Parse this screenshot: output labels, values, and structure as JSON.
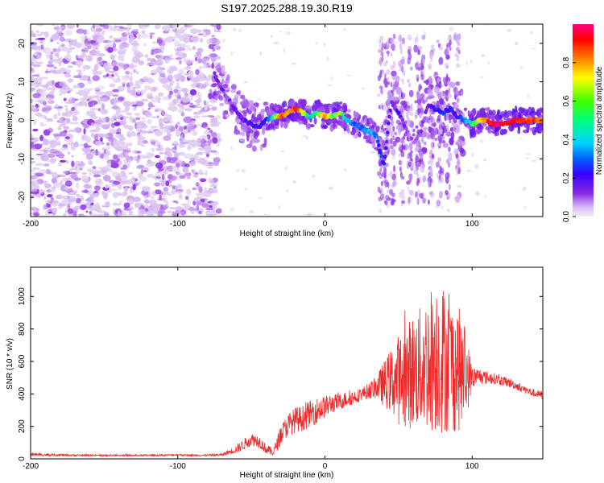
{
  "title": "S197.2025.288.19.30.R19",
  "chart_data": [
    {
      "type": "heatmap",
      "title": "S197.2025.288.19.30.R19",
      "xlabel": "Height of straight line (km)",
      "ylabel": "Frequency (Hz)",
      "xlim": [
        -200,
        148
      ],
      "ylim": [
        -25,
        25
      ],
      "xticks": [
        -200,
        -100,
        0,
        100
      ],
      "yticks": [
        -20,
        -10,
        0,
        10,
        20
      ],
      "colorbar": {
        "label": "Normalized spectral amplitude",
        "range": [
          0.0,
          1.0
        ],
        "ticks": [
          0.0,
          0.2,
          0.4,
          0.6,
          0.8
        ],
        "tick_labels": [
          "0.0",
          "0.2",
          "0.4",
          "0.6",
          "0.8"
        ],
        "colors": [
          "#e8e8e8",
          "#d7b8f5",
          "#8a2be2",
          "#3a00ff",
          "#0060ff",
          "#00d0ff",
          "#00ff60",
          "#ffff00",
          "#ff8000",
          "#ff0000",
          "#ff00a0"
        ]
      },
      "ridge": {
        "x": [
          -75,
          -70,
          -65,
          -60,
          -55,
          -50,
          -45,
          -40,
          -35,
          -30,
          -25,
          -20,
          -15,
          -10,
          -5,
          0,
          5,
          10,
          15,
          20,
          25,
          30,
          35,
          40,
          45,
          50,
          55,
          60,
          65,
          70,
          75,
          80,
          85,
          90,
          95,
          100,
          105,
          110,
          115,
          120,
          130,
          140,
          148
        ],
        "y": [
          12,
          8,
          5,
          2,
          0,
          -1,
          -2,
          0,
          1,
          1,
          2,
          3,
          2,
          1,
          2,
          1,
          1,
          2,
          0,
          -1,
          -2,
          -3,
          -4,
          -12,
          5,
          2,
          -2,
          -6,
          -3,
          4,
          3,
          2,
          3,
          1,
          0,
          -1,
          0,
          0,
          -1,
          -1,
          0,
          0,
          0
        ],
        "amplitude": [
          0.25,
          0.2,
          0.2,
          0.25,
          0.25,
          0.3,
          0.3,
          0.3,
          0.55,
          0.85,
          0.75,
          0.9,
          0.7,
          0.5,
          0.6,
          0.8,
          0.6,
          0.7,
          0.5,
          0.4,
          0.4,
          0.5,
          0.4,
          0.3,
          0.2,
          0.25,
          0.2,
          0.15,
          0.2,
          0.2,
          0.3,
          0.35,
          0.3,
          0.3,
          0.45,
          0.6,
          0.7,
          0.85,
          0.95,
          0.95,
          0.9,
          0.85,
          0.8
        ]
      }
    },
    {
      "type": "line",
      "xlabel": "Height of straight line (km)",
      "ylabel": "SNR (10 * v/v)",
      "xlim": [
        -200,
        148
      ],
      "ylim": [
        0,
        1180
      ],
      "xticks": [
        -200,
        -100,
        0,
        100
      ],
      "yticks": [
        0,
        200,
        400,
        600,
        800,
        1000
      ],
      "color": "#ee2a2a",
      "series": [
        {
          "name": "SNR",
          "x": [
            -200,
            -190,
            -180,
            -170,
            -160,
            -150,
            -140,
            -130,
            -120,
            -110,
            -100,
            -90,
            -80,
            -70,
            -60,
            -55,
            -50,
            -45,
            -40,
            -35,
            -30,
            -25,
            -20,
            -15,
            -10,
            -5,
            0,
            5,
            10,
            15,
            20,
            25,
            30,
            35,
            40,
            45,
            50,
            55,
            60,
            65,
            70,
            75,
            80,
            85,
            90,
            95,
            100,
            105,
            110,
            115,
            120,
            125,
            130,
            135,
            140,
            148
          ],
          "mean": [
            28,
            25,
            24,
            22,
            22,
            21,
            22,
            21,
            22,
            22,
            25,
            22,
            22,
            25,
            60,
            90,
            120,
            110,
            60,
            40,
            150,
            210,
            240,
            250,
            280,
            300,
            320,
            340,
            350,
            370,
            380,
            400,
            420,
            440,
            460,
            480,
            490,
            510,
            540,
            560,
            600,
            640,
            620,
            580,
            560,
            520,
            500,
            510,
            500,
            495,
            480,
            470,
            450,
            430,
            410,
            390
          ],
          "spread": [
            10,
            8,
            6,
            5,
            5,
            5,
            5,
            5,
            5,
            5,
            5,
            5,
            5,
            8,
            25,
            35,
            40,
            40,
            30,
            25,
            60,
            70,
            80,
            80,
            80,
            80,
            70,
            60,
            50,
            50,
            45,
            40,
            50,
            70,
            140,
            200,
            280,
            320,
            360,
            380,
            440,
            480,
            470,
            420,
            400,
            320,
            70,
            50,
            40,
            35,
            30,
            30,
            25,
            25,
            25,
            25
          ]
        }
      ]
    }
  ]
}
